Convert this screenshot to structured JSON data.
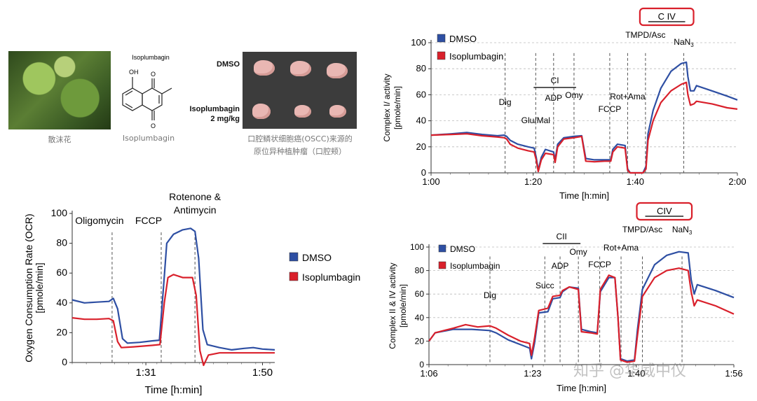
{
  "top_row": {
    "plant_caption": "散沫花",
    "molecule_title": "Isoplumbagin",
    "molecule_caption": "Isoplumbagin",
    "molecule_labels": {
      "oh": "OH",
      "o1": "O",
      "o2": "O"
    },
    "xenograft": {
      "label_dmso": "DMSO",
      "label_iso_1": "Isoplumbagin",
      "label_iso_2": "2 mg/kg",
      "caption_1": "口腔鳞状细胞癌(OSCC)来源的",
      "caption_2": "原位异种植肿瘤（口腔颊）"
    }
  },
  "watermark": "知乎 @华威中仪",
  "colors": {
    "dmso": "#2e4fa3",
    "isoplumbagin": "#d9202b",
    "box": "#d9202b",
    "grid": "#bbbbbb",
    "marker": "#555555"
  },
  "chart_data": [
    {
      "id": "ocr",
      "type": "line",
      "title": "",
      "xlabel": "Time [h:min]",
      "ylabel": "Oxygen Consumption Rate (OCR)",
      "ylabel2": "[pmole/min]",
      "ylim": [
        0,
        100
      ],
      "yticks": [
        0,
        20,
        40,
        60,
        80,
        100
      ],
      "xlim": [
        79,
        112
      ],
      "xticks": [
        {
          "v": 91,
          "label": "1:31"
        },
        {
          "v": 110,
          "label": "1:50"
        }
      ],
      "markers": [
        {
          "t": 85.5,
          "label": "Oligomycin"
        },
        {
          "t": 93.5,
          "label": "FCCP"
        },
        {
          "t": 99,
          "label": "Rotenone &",
          "label2": "Antimycin"
        }
      ],
      "legend": [
        "DMSO",
        "Isoplumbagin"
      ],
      "series": [
        {
          "name": "DMSO",
          "color": "#2e4fa3",
          "points": [
            [
              79,
              42
            ],
            [
              81,
              40
            ],
            [
              83,
              40.5
            ],
            [
              85,
              41
            ],
            [
              85.7,
              43
            ],
            [
              86.4,
              36
            ],
            [
              87.2,
              16
            ],
            [
              88,
              13
            ],
            [
              90,
              13.5
            ],
            [
              92,
              14.5
            ],
            [
              93.2,
              15
            ],
            [
              93.9,
              52
            ],
            [
              94.4,
              80
            ],
            [
              95.5,
              86
            ],
            [
              97,
              89
            ],
            [
              98.3,
              90
            ],
            [
              99,
              88
            ],
            [
              99.6,
              70
            ],
            [
              100.3,
              22
            ],
            [
              101,
              12
            ],
            [
              103,
              10
            ],
            [
              105,
              8.5
            ],
            [
              107,
              9.5
            ],
            [
              108.5,
              10
            ],
            [
              110,
              9
            ],
            [
              112,
              8.5
            ]
          ]
        },
        {
          "name": "Isoplumbagin",
          "color": "#d9202b",
          "points": [
            [
              79,
              30
            ],
            [
              81,
              29
            ],
            [
              83,
              29
            ],
            [
              85,
              29.5
            ],
            [
              85.7,
              28
            ],
            [
              86.4,
              14
            ],
            [
              87,
              10
            ],
            [
              89,
              10.5
            ],
            [
              92,
              11.5
            ],
            [
              93.3,
              12
            ],
            [
              94,
              40
            ],
            [
              94.6,
              57
            ],
            [
              95.5,
              59
            ],
            [
              97,
              57
            ],
            [
              98.6,
              57
            ],
            [
              99.2,
              45
            ],
            [
              99.8,
              8
            ],
            [
              100.4,
              -2
            ],
            [
              101.2,
              5
            ],
            [
              103,
              6.5
            ],
            [
              106,
              6.5
            ],
            [
              109,
              6.5
            ],
            [
              112,
              6.5
            ]
          ]
        }
      ]
    },
    {
      "id": "c1",
      "type": "line",
      "xlabel": "Time [h:min]",
      "ylabel": "Complex I/ activity",
      "ylabel2": "[pmole/min]",
      "ylim": [
        0,
        100
      ],
      "yticks": [
        0,
        20,
        40,
        60,
        80,
        100
      ],
      "xlim": [
        60,
        120
      ],
      "xticks": [
        {
          "v": 60,
          "label": "1:00"
        },
        {
          "v": 80,
          "label": "1:20"
        },
        {
          "v": 100,
          "label": "1:40"
        },
        {
          "v": 120,
          "label": "2:00"
        }
      ],
      "markers": [
        {
          "t": 74.5,
          "label": "Dig"
        },
        {
          "t": 80.5,
          "label": "Glu/Mal"
        },
        {
          "t": 84,
          "label": "ADP"
        },
        {
          "t": 88,
          "label": "Omy"
        },
        {
          "t": 95,
          "label": "FCCP"
        },
        {
          "t": 98.5,
          "label": "Rot+Ama"
        },
        {
          "t": 102,
          "label": "TMPD/Asc"
        },
        {
          "t": 109.5,
          "label": "NaN",
          "sub": "3"
        }
      ],
      "bracket": {
        "label": "CI",
        "t0": 80.5,
        "t1": 88
      },
      "boxed": {
        "label": "C IV",
        "t0": 102,
        "t1": 109.5
      },
      "legend": [
        "DMSO",
        "Isoplumbagin"
      ],
      "series": [
        {
          "name": "DMSO",
          "color": "#2e4fa3",
          "points": [
            [
              60,
              29
            ],
            [
              64,
              30
            ],
            [
              67,
              31
            ],
            [
              70,
              29.5
            ],
            [
              73,
              28.5
            ],
            [
              74.3,
              29
            ],
            [
              74.8,
              28
            ],
            [
              75.5,
              25
            ],
            [
              77,
              22
            ],
            [
              79,
              20
            ],
            [
              80.2,
              19
            ],
            [
              80.6,
              12
            ],
            [
              81,
              2
            ],
            [
              81.6,
              12
            ],
            [
              82.4,
              18
            ],
            [
              84,
              16
            ],
            [
              84.3,
              10
            ],
            [
              84.8,
              22
            ],
            [
              86,
              27
            ],
            [
              88,
              28
            ],
            [
              89.5,
              28.5
            ],
            [
              90.3,
              11
            ],
            [
              92,
              10
            ],
            [
              94,
              10
            ],
            [
              95.2,
              10
            ],
            [
              95.6,
              18
            ],
            [
              96.5,
              22
            ],
            [
              98,
              21
            ],
            [
              98.5,
              3
            ],
            [
              99,
              0
            ],
            [
              100,
              0
            ],
            [
              101.5,
              0
            ],
            [
              102.1,
              5
            ],
            [
              102.5,
              30
            ],
            [
              103.5,
              48
            ],
            [
              105,
              65
            ],
            [
              107,
              78
            ],
            [
              109,
              84
            ],
            [
              110,
              85
            ],
            [
              110.3,
              74
            ],
            [
              110.8,
              63
            ],
            [
              111.5,
              63
            ],
            [
              112,
              67
            ],
            [
              115,
              63
            ],
            [
              118,
              59
            ],
            [
              120,
              56
            ]
          ]
        },
        {
          "name": "Isoplumbagin",
          "color": "#d9202b",
          "points": [
            [
              60,
              29
            ],
            [
              64,
              29.5
            ],
            [
              67,
              30
            ],
            [
              70,
              28.5
            ],
            [
              73,
              27.5
            ],
            [
              74.3,
              27
            ],
            [
              74.8,
              26
            ],
            [
              75.5,
              22
            ],
            [
              77,
              19
            ],
            [
              79,
              17
            ],
            [
              80.2,
              16
            ],
            [
              80.6,
              10
            ],
            [
              81,
              1
            ],
            [
              81.6,
              10
            ],
            [
              82.4,
              15
            ],
            [
              84,
              14
            ],
            [
              84.3,
              8
            ],
            [
              84.8,
              20
            ],
            [
              86,
              26
            ],
            [
              88,
              27
            ],
            [
              89.5,
              28
            ],
            [
              90.3,
              9
            ],
            [
              92,
              8.5
            ],
            [
              94,
              9
            ],
            [
              95.2,
              9
            ],
            [
              95.6,
              16
            ],
            [
              96.5,
              20
            ],
            [
              98,
              19
            ],
            [
              98.5,
              2
            ],
            [
              99,
              0
            ],
            [
              100,
              0
            ],
            [
              101.5,
              0
            ],
            [
              102.1,
              3
            ],
            [
              102.5,
              25
            ],
            [
              103.5,
              40
            ],
            [
              105,
              54
            ],
            [
              107,
              63
            ],
            [
              109,
              68
            ],
            [
              110,
              69.5
            ],
            [
              110.3,
              60
            ],
            [
              110.8,
              52
            ],
            [
              111.5,
              53
            ],
            [
              112,
              55
            ],
            [
              115,
              53
            ],
            [
              118,
              50
            ],
            [
              120,
              49
            ]
          ]
        }
      ]
    },
    {
      "id": "c2",
      "type": "line",
      "xlabel": "Time [h:min]",
      "ylabel": "Complex II & IV activity",
      "ylabel2": "[pmole/min]",
      "ylim": [
        0,
        100
      ],
      "yticks": [
        0,
        20,
        40,
        60,
        80,
        100
      ],
      "xlim": [
        66,
        116
      ],
      "xticks": [
        {
          "v": 66,
          "label": "1:06"
        },
        {
          "v": 83,
          "label": "1:23"
        },
        {
          "v": 100,
          "label": "1:40"
        },
        {
          "v": 116,
          "label": "1:56"
        }
      ],
      "markers": [
        {
          "t": 76,
          "label": "Dig"
        },
        {
          "t": 85,
          "label": "Succ"
        },
        {
          "t": 87.5,
          "label": "ADP"
        },
        {
          "t": 90.5,
          "label": "Omy"
        },
        {
          "t": 94,
          "label": "FCCP"
        },
        {
          "t": 97.5,
          "label": "Rot+Ama"
        },
        {
          "t": 101,
          "label": "TMPD/Asc"
        },
        {
          "t": 107.5,
          "label": "NaN",
          "sub": "3"
        }
      ],
      "bracket": {
        "label": "CII",
        "t0": 85,
        "t1": 90.5
      },
      "boxed": {
        "label": "CIV",
        "t0": 101,
        "t1": 107.5
      },
      "legend": [
        "DMSO",
        "Isoplumbagin"
      ],
      "series": [
        {
          "name": "DMSO",
          "color": "#2e4fa3",
          "points": [
            [
              66,
              20
            ],
            [
              67,
              27
            ],
            [
              70,
              30
            ],
            [
              73,
              30
            ],
            [
              76,
              29
            ],
            [
              77,
              27
            ],
            [
              79,
              21
            ],
            [
              81,
              17
            ],
            [
              82.5,
              14
            ],
            [
              82.8,
              5
            ],
            [
              83.3,
              18
            ],
            [
              84,
              44
            ],
            [
              85.5,
              45
            ],
            [
              86.3,
              56
            ],
            [
              87.5,
              57
            ],
            [
              87.9,
              62
            ],
            [
              89,
              66
            ],
            [
              90.5,
              65
            ],
            [
              91,
              30
            ],
            [
              92.5,
              28
            ],
            [
              93.6,
              27
            ],
            [
              94.1,
              62
            ],
            [
              95.5,
              74
            ],
            [
              96.5,
              74
            ],
            [
              97,
              40
            ],
            [
              97.4,
              5
            ],
            [
              98.5,
              3
            ],
            [
              99.7,
              4
            ],
            [
              100.2,
              30
            ],
            [
              101,
              64
            ],
            [
              103,
              85
            ],
            [
              105,
              93
            ],
            [
              107,
              96
            ],
            [
              108.5,
              95
            ],
            [
              109,
              72
            ],
            [
              109.5,
              60
            ],
            [
              110,
              68
            ],
            [
              113,
              63
            ],
            [
              116,
              57
            ]
          ]
        },
        {
          "name": "Isoplumbagin",
          "color": "#d9202b",
          "points": [
            [
              66,
              20
            ],
            [
              67,
              27
            ],
            [
              70,
              31
            ],
            [
              72,
              34
            ],
            [
              74,
              32
            ],
            [
              76,
              33
            ],
            [
              77,
              31
            ],
            [
              79,
              25
            ],
            [
              81,
              20
            ],
            [
              82.5,
              18
            ],
            [
              82.8,
              8
            ],
            [
              83.3,
              22
            ],
            [
              84,
              46
            ],
            [
              85.5,
              48
            ],
            [
              86.3,
              58
            ],
            [
              87.5,
              59
            ],
            [
              87.9,
              63
            ],
            [
              89,
              66
            ],
            [
              90.5,
              64
            ],
            [
              91,
              28
            ],
            [
              92.5,
              27
            ],
            [
              93.6,
              26
            ],
            [
              94.1,
              64
            ],
            [
              95.5,
              76
            ],
            [
              96.5,
              74
            ],
            [
              97,
              40
            ],
            [
              97.4,
              4
            ],
            [
              98.5,
              2
            ],
            [
              99.7,
              3
            ],
            [
              100.2,
              25
            ],
            [
              101,
              58
            ],
            [
              103,
              74
            ],
            [
              105,
              80
            ],
            [
              107,
              82
            ],
            [
              108.5,
              80
            ],
            [
              109,
              62
            ],
            [
              109.5,
              50
            ],
            [
              110,
              55
            ],
            [
              113,
              50
            ],
            [
              116,
              43
            ]
          ]
        }
      ]
    }
  ]
}
